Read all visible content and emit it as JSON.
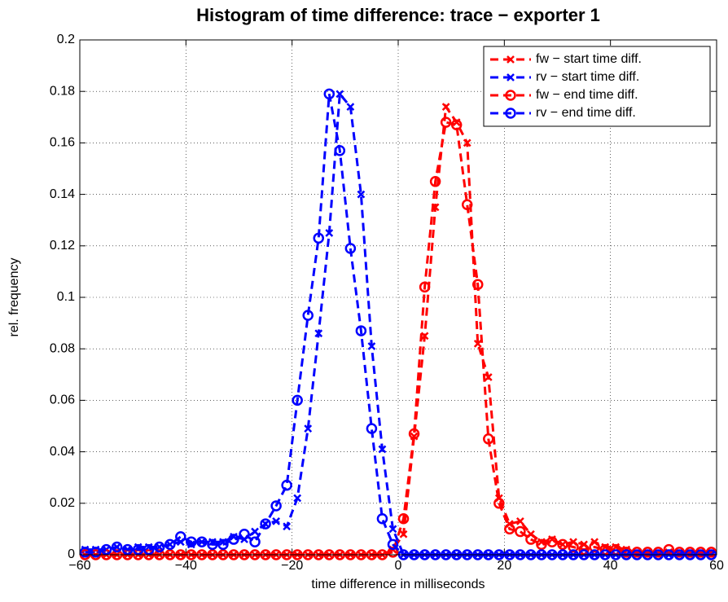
{
  "chart_data": {
    "type": "line",
    "title": "Histogram of time difference: trace − exporter 1",
    "x_label": "time difference in milliseconds",
    "y_label": "rel. frequency",
    "x": [
      -59,
      -57,
      -55,
      -53,
      -51,
      -49,
      -47,
      -45,
      -43,
      -41,
      -39,
      -37,
      -35,
      -33,
      -31,
      -29,
      -27,
      -25,
      -23,
      -21,
      -19,
      -17,
      -15,
      -13,
      -11,
      -9,
      -7,
      -5,
      -3,
      -1,
      1,
      3,
      5,
      7,
      9,
      11,
      13,
      15,
      17,
      19,
      21,
      23,
      25,
      27,
      29,
      31,
      33,
      35,
      37,
      39,
      41,
      43,
      45,
      47,
      49,
      51,
      53,
      55,
      57,
      59
    ],
    "series": [
      {
        "name": "fw − start time diff.",
        "color": "#ff0000",
        "marker": "x",
        "values": [
          0,
          0,
          0,
          0,
          0,
          0,
          0,
          0,
          0,
          0,
          0,
          0,
          0,
          0,
          0,
          0,
          0,
          0,
          0,
          0,
          0,
          0,
          0,
          0,
          0,
          0,
          0,
          0,
          0,
          0.002,
          0.008,
          0.046,
          0.085,
          0.135,
          0.174,
          0.168,
          0.16,
          0.082,
          0.069,
          0.022,
          0.012,
          0.013,
          0.008,
          0.005,
          0.006,
          0.004,
          0.005,
          0.004,
          0.005,
          0.003,
          0.003,
          0.002,
          0.001,
          0.001,
          0.001,
          0.001,
          0.001,
          0.001,
          0.001,
          0.001
        ]
      },
      {
        "name": "rv − start time diff.",
        "color": "#0000ff",
        "marker": "x",
        "values": [
          0.002,
          0.002,
          0.002,
          0.003,
          0.002,
          0.003,
          0.003,
          0.003,
          0.004,
          0.005,
          0.004,
          0.005,
          0.005,
          0.005,
          0.007,
          0.006,
          0.009,
          0.012,
          0.013,
          0.011,
          0.022,
          0.049,
          0.086,
          0.125,
          0.179,
          0.174,
          0.14,
          0.081,
          0.041,
          0.01,
          0,
          0,
          0,
          0,
          0,
          0,
          0,
          0,
          0,
          0,
          0,
          0,
          0,
          0,
          0,
          0,
          0,
          0,
          0,
          0,
          0,
          0,
          0,
          0,
          0,
          0,
          0,
          0,
          0,
          0
        ]
      },
      {
        "name": "fw − end time diff.",
        "color": "#ff0000",
        "marker": "o",
        "values": [
          0,
          0,
          0,
          0,
          0,
          0,
          0,
          0,
          0,
          0,
          0,
          0,
          0,
          0,
          0,
          0,
          0,
          0,
          0,
          0,
          0,
          0,
          0,
          0,
          0,
          0,
          0,
          0,
          0,
          0.001,
          0.014,
          0.047,
          0.104,
          0.145,
          0.168,
          0.167,
          0.136,
          0.105,
          0.045,
          0.02,
          0.01,
          0.009,
          0.006,
          0.004,
          0.005,
          0.004,
          0.003,
          0.002,
          0.003,
          0.002,
          0.002,
          0.001,
          0.001,
          0.001,
          0.001,
          0.002,
          0.001,
          0.001,
          0.001,
          0.001
        ]
      },
      {
        "name": "rv − end time diff.",
        "color": "#0000ff",
        "marker": "o",
        "values": [
          0.001,
          0.001,
          0.002,
          0.003,
          0.002,
          0.002,
          0.002,
          0.003,
          0.004,
          0.007,
          0.005,
          0.005,
          0.004,
          0.004,
          0.006,
          0.008,
          0.005,
          0.012,
          0.019,
          0.027,
          0.06,
          0.093,
          0.123,
          0.179,
          0.157,
          0.119,
          0.087,
          0.049,
          0.014,
          0.004,
          0,
          0,
          0,
          0,
          0,
          0,
          0,
          0,
          0,
          0,
          0,
          0,
          0,
          0,
          0,
          0,
          0,
          0,
          0,
          0,
          0,
          0,
          0,
          0,
          0,
          0,
          0,
          0,
          0,
          0
        ]
      }
    ],
    "xlim": [
      -60,
      60
    ],
    "xticks": [
      {
        "value": -60,
        "label": "−60"
      },
      {
        "value": -40,
        "label": "−40"
      },
      {
        "value": -20,
        "label": "−20"
      },
      0,
      20,
      40,
      60
    ],
    "ylim": [
      0,
      0.2
    ],
    "yticks": [
      0,
      0.02,
      0.04,
      0.06,
      0.08,
      0.1,
      0.12,
      0.14,
      0.16,
      0.18,
      0.2
    ],
    "grid": true,
    "legend": "top-right"
  }
}
